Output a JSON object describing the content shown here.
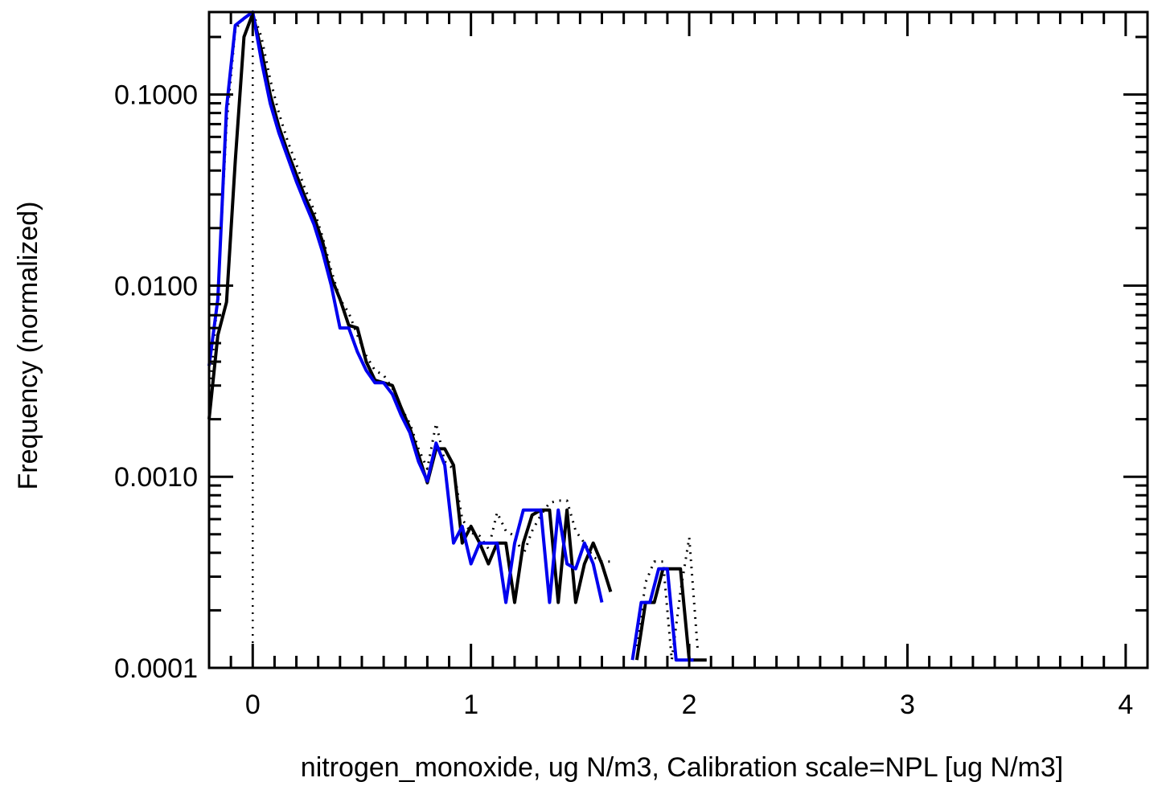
{
  "chart_data": {
    "type": "line",
    "xlabel": "nitrogen_monoxide, ug N/m3, Calibration scale=NPL [ug N/m3]",
    "ylabel": "Frequency (normalized)",
    "xlim": [
      -0.2,
      4.1
    ],
    "ylim": [
      0.0001,
      0.27
    ],
    "yscale": "log",
    "x_ticks": [
      0,
      1,
      2,
      3,
      4
    ],
    "x_tick_labels": [
      "0",
      "1",
      "2",
      "3",
      "4"
    ],
    "y_ticks": [
      0.0001,
      0.001,
      0.01,
      0.1
    ],
    "y_tick_labels": [
      "0.0001",
      "0.0010",
      "0.0100",
      "0.1000"
    ],
    "vline_x": 0,
    "series": [
      {
        "color": "#000000",
        "style": "dotted",
        "segments": [
          [
            [
              -0.2,
              0.0025
            ],
            [
              -0.16,
              0.009
            ],
            [
              -0.12,
              0.07
            ],
            [
              -0.08,
              0.22
            ],
            [
              -0.04,
              0.25
            ],
            [
              0,
              0.27
            ],
            [
              0.04,
              0.2
            ],
            [
              0.08,
              0.12
            ],
            [
              0.12,
              0.08
            ],
            [
              0.16,
              0.057
            ],
            [
              0.2,
              0.043
            ],
            [
              0.24,
              0.032
            ],
            [
              0.28,
              0.025
            ],
            [
              0.32,
              0.018
            ],
            [
              0.36,
              0.012
            ],
            [
              0.4,
              0.0085
            ],
            [
              0.44,
              0.0072
            ],
            [
              0.48,
              0.0055
            ],
            [
              0.52,
              0.0043
            ],
            [
              0.56,
              0.0036
            ],
            [
              0.6,
              0.0034
            ],
            [
              0.64,
              0.0029
            ],
            [
              0.68,
              0.0023
            ],
            [
              0.72,
              0.0019
            ],
            [
              0.76,
              0.0014
            ],
            [
              0.8,
              0.0011
            ],
            [
              0.84,
              0.0019
            ],
            [
              0.88,
              0.0012
            ],
            [
              0.92,
              0.0011
            ],
            [
              0.96,
              0.0006
            ],
            [
              1.0,
              0.00051
            ],
            [
              1.04,
              0.00049
            ],
            [
              1.08,
              0.00042
            ],
            [
              1.12,
              0.00065
            ],
            [
              1.16,
              0.00052
            ],
            [
              1.2,
              0.00049
            ],
            [
              1.24,
              0.00039
            ],
            [
              1.28,
              0.00052
            ],
            [
              1.32,
              0.00063
            ],
            [
              1.36,
              0.00073
            ],
            [
              1.4,
              0.00075
            ],
            [
              1.44,
              0.00075
            ],
            [
              1.48,
              0.00052
            ],
            [
              1.52,
              0.00045
            ],
            [
              1.56,
              0.00038
            ],
            [
              1.6,
              0.00036
            ],
            [
              1.64,
              0.00036
            ]
          ],
          [
            [
              1.76,
              0.00013
            ],
            [
              1.8,
              0.00028
            ],
            [
              1.84,
              0.00036
            ],
            [
              1.88,
              0.00036
            ],
            [
              1.92,
              0.00011
            ],
            [
              1.96,
              0.00025
            ],
            [
              2.0,
              0.00048
            ],
            [
              2.04,
              0.00012
            ]
          ]
        ]
      },
      {
        "color": "#000000",
        "style": "solid",
        "segments": [
          [
            [
              -0.2,
              0.002
            ],
            [
              -0.16,
              0.0055
            ],
            [
              -0.12,
              0.0082
            ],
            [
              -0.08,
              0.045
            ],
            [
              -0.04,
              0.2
            ],
            [
              0,
              0.265
            ],
            [
              0.04,
              0.17
            ],
            [
              0.08,
              0.1
            ],
            [
              0.12,
              0.068
            ],
            [
              0.16,
              0.05
            ],
            [
              0.2,
              0.038
            ],
            [
              0.24,
              0.029
            ],
            [
              0.28,
              0.023
            ],
            [
              0.32,
              0.017
            ],
            [
              0.36,
              0.011
            ],
            [
              0.4,
              0.0085
            ],
            [
              0.44,
              0.0062
            ],
            [
              0.48,
              0.006
            ],
            [
              0.52,
              0.004
            ],
            [
              0.56,
              0.0032
            ],
            [
              0.6,
              0.0031
            ],
            [
              0.64,
              0.003
            ],
            [
              0.68,
              0.0023
            ],
            [
              0.72,
              0.0018
            ],
            [
              0.76,
              0.0013
            ],
            [
              0.8,
              0.00093
            ],
            [
              0.84,
              0.0014
            ],
            [
              0.88,
              0.0014
            ],
            [
              0.92,
              0.00115
            ],
            [
              0.96,
              0.00045
            ],
            [
              1.0,
              0.00055
            ],
            [
              1.04,
              0.00045
            ],
            [
              1.08,
              0.00035
            ],
            [
              1.12,
              0.00045
            ],
            [
              1.16,
              0.00045
            ],
            [
              1.2,
              0.00022
            ],
            [
              1.24,
              0.00045
            ],
            [
              1.28,
              0.00063
            ],
            [
              1.32,
              0.00067
            ],
            [
              1.36,
              0.00067
            ],
            [
              1.4,
              0.00022
            ],
            [
              1.44,
              0.00067
            ],
            [
              1.48,
              0.00022
            ],
            [
              1.52,
              0.00035
            ],
            [
              1.56,
              0.00045
            ],
            [
              1.6,
              0.00035
            ],
            [
              1.64,
              0.00025
            ]
          ],
          [
            [
              1.76,
              0.00011
            ],
            [
              1.8,
              0.00022
            ],
            [
              1.84,
              0.00022
            ],
            [
              1.88,
              0.00033
            ],
            [
              1.92,
              0.00033
            ],
            [
              1.96,
              0.00033
            ],
            [
              2.0,
              0.00011
            ],
            [
              2.04,
              0.00011
            ],
            [
              2.08,
              0.00011
            ]
          ]
        ]
      },
      {
        "color": "#0000ee",
        "style": "solid",
        "segments": [
          [
            [
              -0.2,
              0.0038
            ],
            [
              -0.16,
              0.0085
            ],
            [
              -0.12,
              0.085
            ],
            [
              -0.08,
              0.23
            ],
            [
              -0.04,
              0.25
            ],
            [
              0,
              0.27
            ],
            [
              0.04,
              0.15
            ],
            [
              0.08,
              0.09
            ],
            [
              0.12,
              0.063
            ],
            [
              0.16,
              0.047
            ],
            [
              0.2,
              0.035
            ],
            [
              0.24,
              0.027
            ],
            [
              0.28,
              0.021
            ],
            [
              0.32,
              0.015
            ],
            [
              0.36,
              0.01
            ],
            [
              0.4,
              0.006
            ],
            [
              0.44,
              0.006
            ],
            [
              0.48,
              0.0045
            ],
            [
              0.52,
              0.0036
            ],
            [
              0.56,
              0.0031
            ],
            [
              0.6,
              0.0031
            ],
            [
              0.64,
              0.0027
            ],
            [
              0.68,
              0.0021
            ],
            [
              0.72,
              0.0017
            ],
            [
              0.76,
              0.0012
            ],
            [
              0.8,
              0.00095
            ],
            [
              0.84,
              0.0015
            ],
            [
              0.88,
              0.00115
            ],
            [
              0.92,
              0.00045
            ],
            [
              0.96,
              0.00055
            ],
            [
              1.0,
              0.00035
            ],
            [
              1.04,
              0.00045
            ],
            [
              1.08,
              0.00045
            ],
            [
              1.12,
              0.00045
            ],
            [
              1.16,
              0.00022
            ],
            [
              1.2,
              0.00045
            ],
            [
              1.24,
              0.00067
            ],
            [
              1.28,
              0.00067
            ],
            [
              1.32,
              0.00067
            ],
            [
              1.36,
              0.00022
            ],
            [
              1.4,
              0.00067
            ],
            [
              1.44,
              0.00035
            ],
            [
              1.48,
              0.00033
            ],
            [
              1.52,
              0.00045
            ],
            [
              1.56,
              0.00035
            ],
            [
              1.6,
              0.00022
            ]
          ],
          [
            [
              1.74,
              0.00011
            ],
            [
              1.78,
              0.00022
            ],
            [
              1.82,
              0.00022
            ],
            [
              1.86,
              0.00033
            ],
            [
              1.9,
              0.00033
            ],
            [
              1.94,
              0.00011
            ],
            [
              1.98,
              0.00011
            ],
            [
              2.02,
              0.00011
            ]
          ]
        ]
      }
    ]
  }
}
